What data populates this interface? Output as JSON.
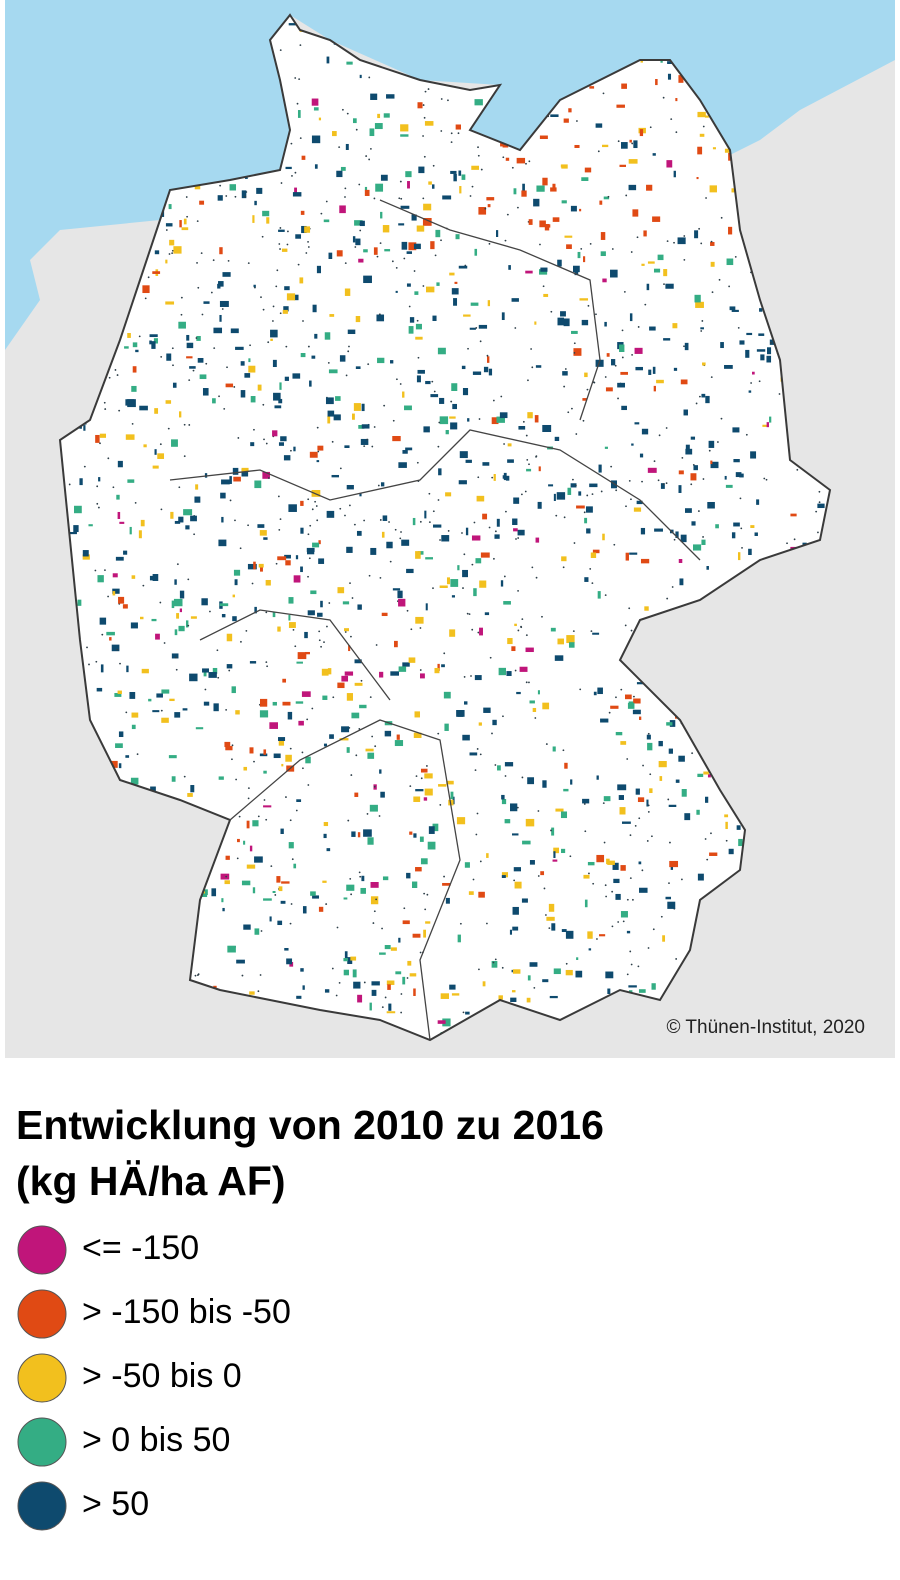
{
  "map": {
    "credit": "© Thünen-Institut, 2020"
  },
  "legend": {
    "title": [
      "Entwicklung von 2010 zu 2016",
      "(kg HÄ/ha AF)"
    ],
    "items": [
      {
        "label": "<= -150",
        "color": "#c0157a"
      },
      {
        "label": "> -150 bis -50",
        "color": "#e04a14"
      },
      {
        "label": "> -50 bis 0",
        "color": "#f2c01e"
      },
      {
        "label": "> 0 bis 50",
        "color": "#34ad84"
      },
      {
        "label": "> 50",
        "color": "#0e4a6e"
      }
    ]
  }
}
